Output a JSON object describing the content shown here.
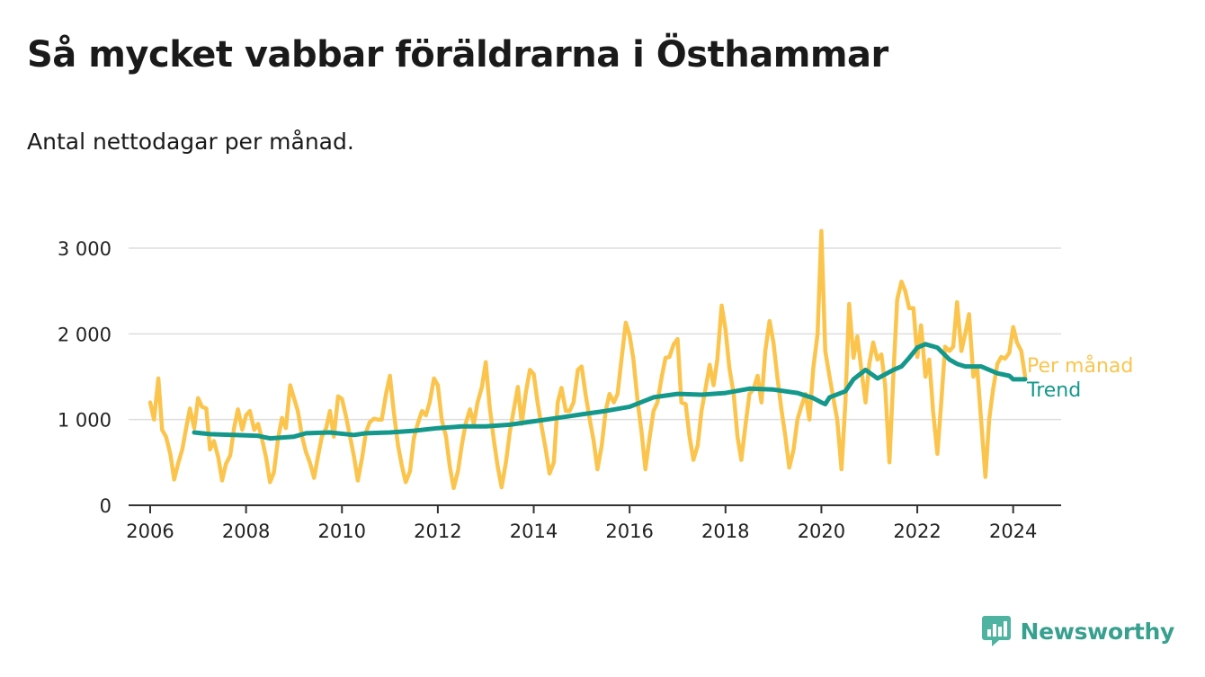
{
  "title": "Så mycket vabbar föräldrarna i Östhammar",
  "subtitle": "Antal nettodagar per månad.",
  "brand": {
    "name": "Newsworthy",
    "icon": "newsworthy-logo-icon"
  },
  "colors": {
    "per_month": "#fbc54d",
    "trend": "#14988b",
    "grid": "#dddddd",
    "axis": "#333333",
    "brand": "#38a08f"
  },
  "chart_data": {
    "type": "line",
    "title": "Så mycket vabbar föräldrarna i Östhammar",
    "subtitle": "Antal nettodagar per månad.",
    "xlabel": "",
    "ylabel": "",
    "xlim": [
      2005.55,
      2025.0
    ],
    "ylim": [
      0,
      3000
    ],
    "grid": true,
    "y_ticks": [
      0,
      1000,
      2000,
      3000
    ],
    "y_tick_labels": [
      "0",
      "1 000",
      "2 000",
      "3 000"
    ],
    "x_ticks": [
      2006,
      2008,
      2010,
      2012,
      2014,
      2016,
      2018,
      2020,
      2022,
      2024
    ],
    "x_tick_labels": [
      "2006",
      "2008",
      "2010",
      "2012",
      "2014",
      "2016",
      "2018",
      "2020",
      "2022",
      "2024"
    ],
    "series": [
      {
        "name": "Per månad",
        "label": "Per månad",
        "points": [
          [
            2006.0,
            1200
          ],
          [
            2006.08,
            1000
          ],
          [
            2006.17,
            1480
          ],
          [
            2006.25,
            880
          ],
          [
            2006.33,
            800
          ],
          [
            2006.42,
            600
          ],
          [
            2006.5,
            300
          ],
          [
            2006.58,
            480
          ],
          [
            2006.67,
            650
          ],
          [
            2006.75,
            900
          ],
          [
            2006.83,
            1130
          ],
          [
            2006.92,
            900
          ],
          [
            2007.0,
            1250
          ],
          [
            2007.08,
            1150
          ],
          [
            2007.17,
            1130
          ],
          [
            2007.25,
            650
          ],
          [
            2007.33,
            750
          ],
          [
            2007.42,
            560
          ],
          [
            2007.5,
            290
          ],
          [
            2007.58,
            480
          ],
          [
            2007.67,
            580
          ],
          [
            2007.75,
            900
          ],
          [
            2007.83,
            1120
          ],
          [
            2007.92,
            880
          ],
          [
            2008.0,
            1050
          ],
          [
            2008.08,
            1100
          ],
          [
            2008.17,
            880
          ],
          [
            2008.25,
            950
          ],
          [
            2008.33,
            780
          ],
          [
            2008.42,
            550
          ],
          [
            2008.5,
            270
          ],
          [
            2008.58,
            380
          ],
          [
            2008.67,
            780
          ],
          [
            2008.75,
            1020
          ],
          [
            2008.83,
            900
          ],
          [
            2008.92,
            1400
          ],
          [
            2009.0,
            1250
          ],
          [
            2009.08,
            1100
          ],
          [
            2009.17,
            800
          ],
          [
            2009.25,
            620
          ],
          [
            2009.33,
            500
          ],
          [
            2009.42,
            320
          ],
          [
            2009.5,
            570
          ],
          [
            2009.58,
            800
          ],
          [
            2009.67,
            900
          ],
          [
            2009.75,
            1100
          ],
          [
            2009.83,
            800
          ],
          [
            2009.92,
            1270
          ],
          [
            2010.0,
            1240
          ],
          [
            2010.08,
            1050
          ],
          [
            2010.17,
            800
          ],
          [
            2010.25,
            570
          ],
          [
            2010.33,
            290
          ],
          [
            2010.42,
            550
          ],
          [
            2010.5,
            850
          ],
          [
            2010.58,
            970
          ],
          [
            2010.67,
            1010
          ],
          [
            2010.75,
            1000
          ],
          [
            2010.83,
            1000
          ],
          [
            2010.92,
            1300
          ],
          [
            2011.0,
            1510
          ],
          [
            2011.08,
            1100
          ],
          [
            2011.17,
            700
          ],
          [
            2011.25,
            460
          ],
          [
            2011.33,
            270
          ],
          [
            2011.42,
            400
          ],
          [
            2011.5,
            780
          ],
          [
            2011.58,
            950
          ],
          [
            2011.67,
            1100
          ],
          [
            2011.75,
            1050
          ],
          [
            2011.83,
            1200
          ],
          [
            2011.92,
            1480
          ],
          [
            2012.0,
            1400
          ],
          [
            2012.08,
            1000
          ],
          [
            2012.17,
            800
          ],
          [
            2012.25,
            450
          ],
          [
            2012.33,
            200
          ],
          [
            2012.42,
            400
          ],
          [
            2012.5,
            700
          ],
          [
            2012.58,
            950
          ],
          [
            2012.67,
            1120
          ],
          [
            2012.75,
            950
          ],
          [
            2012.83,
            1200
          ],
          [
            2012.92,
            1380
          ],
          [
            2013.0,
            1670
          ],
          [
            2013.08,
            1150
          ],
          [
            2013.17,
            750
          ],
          [
            2013.25,
            450
          ],
          [
            2013.33,
            210
          ],
          [
            2013.42,
            500
          ],
          [
            2013.5,
            850
          ],
          [
            2013.58,
            1100
          ],
          [
            2013.67,
            1380
          ],
          [
            2013.75,
            950
          ],
          [
            2013.83,
            1300
          ],
          [
            2013.92,
            1580
          ],
          [
            2014.0,
            1530
          ],
          [
            2014.08,
            1200
          ],
          [
            2014.17,
            900
          ],
          [
            2014.25,
            650
          ],
          [
            2014.33,
            370
          ],
          [
            2014.42,
            500
          ],
          [
            2014.5,
            1200
          ],
          [
            2014.58,
            1370
          ],
          [
            2014.67,
            1100
          ],
          [
            2014.75,
            1100
          ],
          [
            2014.83,
            1200
          ],
          [
            2014.92,
            1580
          ],
          [
            2015.0,
            1620
          ],
          [
            2015.08,
            1300
          ],
          [
            2015.17,
            1000
          ],
          [
            2015.25,
            750
          ],
          [
            2015.33,
            420
          ],
          [
            2015.42,
            700
          ],
          [
            2015.5,
            1100
          ],
          [
            2015.58,
            1300
          ],
          [
            2015.67,
            1200
          ],
          [
            2015.75,
            1300
          ],
          [
            2015.83,
            1700
          ],
          [
            2015.92,
            2130
          ],
          [
            2016.0,
            1980
          ],
          [
            2016.08,
            1700
          ],
          [
            2016.17,
            1200
          ],
          [
            2016.25,
            850
          ],
          [
            2016.33,
            420
          ],
          [
            2016.42,
            800
          ],
          [
            2016.5,
            1100
          ],
          [
            2016.58,
            1200
          ],
          [
            2016.67,
            1500
          ],
          [
            2016.75,
            1720
          ],
          [
            2016.83,
            1730
          ],
          [
            2016.92,
            1880
          ],
          [
            2017.0,
            1940
          ],
          [
            2017.08,
            1200
          ],
          [
            2017.17,
            1180
          ],
          [
            2017.25,
            800
          ],
          [
            2017.33,
            530
          ],
          [
            2017.42,
            700
          ],
          [
            2017.5,
            1100
          ],
          [
            2017.58,
            1350
          ],
          [
            2017.67,
            1640
          ],
          [
            2017.75,
            1400
          ],
          [
            2017.83,
            1700
          ],
          [
            2017.92,
            2330
          ],
          [
            2018.0,
            2050
          ],
          [
            2018.08,
            1600
          ],
          [
            2018.17,
            1300
          ],
          [
            2018.25,
            800
          ],
          [
            2018.33,
            530
          ],
          [
            2018.42,
            950
          ],
          [
            2018.5,
            1300
          ],
          [
            2018.58,
            1350
          ],
          [
            2018.67,
            1510
          ],
          [
            2018.75,
            1200
          ],
          [
            2018.83,
            1800
          ],
          [
            2018.92,
            2150
          ],
          [
            2019.0,
            1900
          ],
          [
            2019.08,
            1500
          ],
          [
            2019.17,
            1100
          ],
          [
            2019.25,
            800
          ],
          [
            2019.33,
            440
          ],
          [
            2019.42,
            650
          ],
          [
            2019.5,
            1000
          ],
          [
            2019.58,
            1150
          ],
          [
            2019.67,
            1300
          ],
          [
            2019.75,
            1000
          ],
          [
            2019.83,
            1600
          ],
          [
            2019.92,
            2000
          ],
          [
            2020.0,
            3200
          ],
          [
            2020.08,
            1800
          ],
          [
            2020.17,
            1500
          ],
          [
            2020.25,
            1250
          ],
          [
            2020.33,
            1000
          ],
          [
            2020.42,
            420
          ],
          [
            2020.5,
            1200
          ],
          [
            2020.58,
            2350
          ],
          [
            2020.67,
            1720
          ],
          [
            2020.75,
            1970
          ],
          [
            2020.83,
            1600
          ],
          [
            2020.92,
            1200
          ],
          [
            2021.0,
            1650
          ],
          [
            2021.08,
            1900
          ],
          [
            2021.17,
            1700
          ],
          [
            2021.25,
            1760
          ],
          [
            2021.33,
            1400
          ],
          [
            2021.42,
            500
          ],
          [
            2021.5,
            1500
          ],
          [
            2021.58,
            2400
          ],
          [
            2021.67,
            2610
          ],
          [
            2021.75,
            2500
          ],
          [
            2021.83,
            2300
          ],
          [
            2021.92,
            2300
          ],
          [
            2022.0,
            1730
          ],
          [
            2022.08,
            2100
          ],
          [
            2022.17,
            1500
          ],
          [
            2022.25,
            1700
          ],
          [
            2022.33,
            1100
          ],
          [
            2022.42,
            600
          ],
          [
            2022.5,
            1200
          ],
          [
            2022.58,
            1850
          ],
          [
            2022.67,
            1800
          ],
          [
            2022.75,
            1850
          ],
          [
            2022.83,
            2370
          ],
          [
            2022.92,
            1800
          ],
          [
            2023.0,
            2000
          ],
          [
            2023.08,
            2230
          ],
          [
            2023.17,
            1500
          ],
          [
            2023.25,
            1600
          ],
          [
            2023.33,
            1000
          ],
          [
            2023.42,
            330
          ],
          [
            2023.5,
            1000
          ],
          [
            2023.58,
            1350
          ],
          [
            2023.67,
            1650
          ],
          [
            2023.75,
            1730
          ],
          [
            2023.83,
            1710
          ],
          [
            2023.92,
            1780
          ],
          [
            2024.0,
            2080
          ],
          [
            2024.08,
            1900
          ],
          [
            2024.17,
            1800
          ],
          [
            2024.25,
            1500
          ]
        ]
      },
      {
        "name": "Trend",
        "label": "Trend",
        "points": [
          [
            2006.92,
            850
          ],
          [
            2007.25,
            830
          ],
          [
            2007.75,
            820
          ],
          [
            2008.25,
            810
          ],
          [
            2008.5,
            780
          ],
          [
            2009.0,
            800
          ],
          [
            2009.25,
            840
          ],
          [
            2009.75,
            850
          ],
          [
            2010.25,
            820
          ],
          [
            2010.5,
            840
          ],
          [
            2011.0,
            850
          ],
          [
            2011.5,
            870
          ],
          [
            2012.0,
            900
          ],
          [
            2012.5,
            920
          ],
          [
            2013.0,
            920
          ],
          [
            2013.5,
            940
          ],
          [
            2014.0,
            980
          ],
          [
            2014.5,
            1020
          ],
          [
            2015.0,
            1060
          ],
          [
            2015.5,
            1100
          ],
          [
            2016.0,
            1150
          ],
          [
            2016.5,
            1260
          ],
          [
            2017.0,
            1300
          ],
          [
            2017.5,
            1290
          ],
          [
            2018.0,
            1310
          ],
          [
            2018.5,
            1360
          ],
          [
            2019.0,
            1350
          ],
          [
            2019.5,
            1310
          ],
          [
            2019.83,
            1250
          ],
          [
            2020.0,
            1200
          ],
          [
            2020.08,
            1180
          ],
          [
            2020.17,
            1260
          ],
          [
            2020.5,
            1330
          ],
          [
            2020.67,
            1470
          ],
          [
            2020.92,
            1580
          ],
          [
            2021.17,
            1480
          ],
          [
            2021.5,
            1580
          ],
          [
            2021.67,
            1620
          ],
          [
            2021.83,
            1720
          ],
          [
            2022.0,
            1840
          ],
          [
            2022.17,
            1880
          ],
          [
            2022.42,
            1840
          ],
          [
            2022.67,
            1700
          ],
          [
            2022.83,
            1650
          ],
          [
            2023.0,
            1620
          ],
          [
            2023.33,
            1620
          ],
          [
            2023.67,
            1540
          ],
          [
            2023.92,
            1510
          ],
          [
            2024.0,
            1470
          ],
          [
            2024.25,
            1470
          ]
        ]
      }
    ]
  }
}
